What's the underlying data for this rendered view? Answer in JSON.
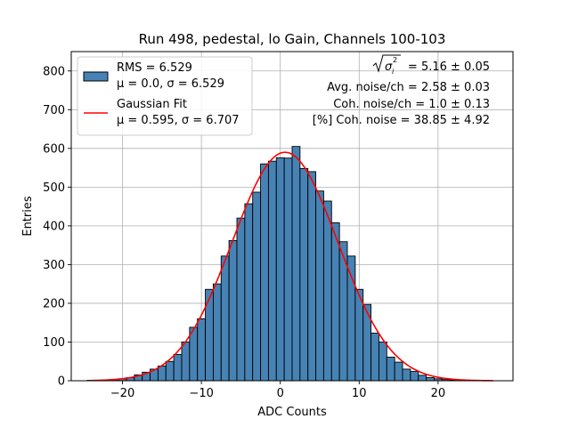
{
  "chart_data": {
    "type": "bar",
    "title": "Run 498, pedestal, lo Gain, Channels 100-103",
    "xlabel": "ADC Counts",
    "ylabel": "Entries",
    "xlim": [
      -26.5,
      29.5
    ],
    "ylim": [
      0,
      850
    ],
    "xticks": [
      -20,
      -10,
      0,
      10,
      20
    ],
    "yticks": [
      0,
      100,
      200,
      300,
      400,
      500,
      600,
      700,
      800
    ],
    "grid": true,
    "bin_width": 1,
    "bins": [
      {
        "x": -24,
        "y": 1
      },
      {
        "x": -23,
        "y": 1
      },
      {
        "x": -22,
        "y": 2
      },
      {
        "x": -21,
        "y": 3
      },
      {
        "x": -20,
        "y": 5
      },
      {
        "x": -19,
        "y": 8
      },
      {
        "x": -18,
        "y": 15
      },
      {
        "x": -17,
        "y": 22
      },
      {
        "x": -16,
        "y": 30
      },
      {
        "x": -15,
        "y": 38
      },
      {
        "x": -14,
        "y": 50
      },
      {
        "x": -13,
        "y": 68
      },
      {
        "x": -12,
        "y": 100
      },
      {
        "x": -11,
        "y": 138
      },
      {
        "x": -10,
        "y": 160
      },
      {
        "x": -9,
        "y": 236
      },
      {
        "x": -8,
        "y": 250
      },
      {
        "x": -7,
        "y": 322
      },
      {
        "x": -6,
        "y": 362
      },
      {
        "x": -5,
        "y": 420
      },
      {
        "x": -4,
        "y": 457
      },
      {
        "x": -3,
        "y": 487
      },
      {
        "x": -2,
        "y": 560
      },
      {
        "x": -1,
        "y": 567
      },
      {
        "x": 0,
        "y": 576
      },
      {
        "x": 1,
        "y": 575
      },
      {
        "x": 2,
        "y": 605
      },
      {
        "x": 3,
        "y": 548
      },
      {
        "x": 4,
        "y": 540
      },
      {
        "x": 5,
        "y": 490
      },
      {
        "x": 6,
        "y": 464
      },
      {
        "x": 7,
        "y": 408
      },
      {
        "x": 8,
        "y": 359
      },
      {
        "x": 9,
        "y": 322
      },
      {
        "x": 10,
        "y": 236
      },
      {
        "x": 11,
        "y": 197
      },
      {
        "x": 12,
        "y": 123
      },
      {
        "x": 13,
        "y": 100
      },
      {
        "x": 14,
        "y": 61
      },
      {
        "x": 15,
        "y": 48
      },
      {
        "x": 16,
        "y": 30
      },
      {
        "x": 17,
        "y": 24
      },
      {
        "x": 18,
        "y": 14
      },
      {
        "x": 19,
        "y": 8
      },
      {
        "x": 20,
        "y": 5
      },
      {
        "x": 21,
        "y": 3
      },
      {
        "x": 22,
        "y": 2
      },
      {
        "x": 23,
        "y": 1
      },
      {
        "x": 24,
        "y": 1
      },
      {
        "x": 25,
        "y": 1
      },
      {
        "x": 26,
        "y": 0
      }
    ],
    "fit": {
      "mu": 0.595,
      "sigma": 6.707,
      "amplitude": 590,
      "x_range": [
        -24,
        27
      ]
    },
    "series": [
      {
        "name_line1": "RMS = 6.529",
        "name_line2": "μ = 0.0, σ = 6.529",
        "type": "histogram",
        "color": "#4682b4",
        "edge": "#000000"
      },
      {
        "name_line1": "Gaussian Fit",
        "name_line2": "μ = 0.595, σ = 6.707",
        "type": "line",
        "color": "#ff0000"
      }
    ],
    "legend_position": "top-left",
    "annotations": {
      "sigma_sum_value": " = 5.16 ± 0.05",
      "avg_noise": "Avg. noise/ch = 2.58 ± 0.03",
      "coh_noise": "Coh. noise/ch = 1.0 ± 0.13",
      "pct_coh_noise": "[%] Coh. noise = 38.85 ± 4.92"
    }
  }
}
